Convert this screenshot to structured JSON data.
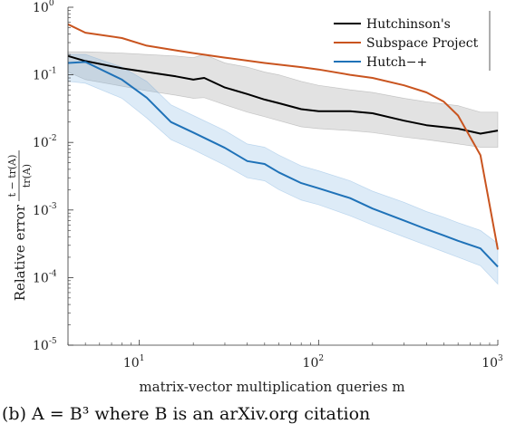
{
  "chart_data": {
    "type": "line",
    "xlabel": "matrix-vector multiplication queries m",
    "ylabel": "Relative error",
    "ylabel_fraction": {
      "numerator": "t − tr(A)",
      "denominator": "tr(A)"
    },
    "xscale": "log",
    "yscale": "log",
    "xlim": [
      4,
      1000
    ],
    "ylim": [
      1e-05,
      1
    ],
    "x_ticks": [
      {
        "base": "10",
        "exp": "1",
        "value": 10
      },
      {
        "base": "10",
        "exp": "2",
        "value": 100
      },
      {
        "base": "10",
        "exp": "3",
        "value": 1000
      }
    ],
    "y_ticks": [
      {
        "base": "10",
        "exp": "0",
        "value": 1
      },
      {
        "base": "10",
        "exp": "-1",
        "value": 0.1
      },
      {
        "base": "10",
        "exp": "-2",
        "value": 0.01
      },
      {
        "base": "10",
        "exp": "-3",
        "value": 0.001
      },
      {
        "base": "10",
        "exp": "-4",
        "value": 0.0001
      },
      {
        "base": "10",
        "exp": "-5",
        "value": 1e-05
      }
    ],
    "legend_position": "top-right",
    "series": [
      {
        "name": "Hutchinson's",
        "color": "#000000",
        "x": [
          4,
          5,
          8,
          11,
          16,
          20,
          23,
          30,
          40,
          50,
          60,
          80,
          100,
          150,
          200,
          300,
          400,
          600,
          800,
          1000
        ],
        "y": [
          0.19,
          0.16,
          0.125,
          0.11,
          0.095,
          0.085,
          0.09,
          0.065,
          0.052,
          0.043,
          0.038,
          0.031,
          0.029,
          0.029,
          0.027,
          0.021,
          0.018,
          0.016,
          0.0135,
          0.015
        ],
        "band_upper": [
          0.22,
          0.22,
          0.21,
          0.2,
          0.19,
          0.18,
          0.2,
          0.15,
          0.13,
          0.11,
          0.1,
          0.08,
          0.07,
          0.06,
          0.055,
          0.045,
          0.04,
          0.035,
          0.028,
          0.028
        ],
        "band_lower": [
          0.11,
          0.085,
          0.068,
          0.058,
          0.05,
          0.045,
          0.046,
          0.036,
          0.028,
          0.024,
          0.021,
          0.017,
          0.016,
          0.015,
          0.014,
          0.012,
          0.011,
          0.0095,
          0.0085,
          0.0085
        ]
      },
      {
        "name": "Subspace Project",
        "color": "#c9541f",
        "x": [
          4,
          5,
          8,
          11,
          16,
          20,
          30,
          50,
          80,
          100,
          150,
          200,
          300,
          400,
          500,
          600,
          800,
          1000
        ],
        "y": [
          0.56,
          0.42,
          0.35,
          0.27,
          0.23,
          0.21,
          0.18,
          0.15,
          0.13,
          0.12,
          0.1,
          0.09,
          0.07,
          0.055,
          0.04,
          0.025,
          0.0065,
          0.00026
        ]
      },
      {
        "name": "Hutch−+",
        "color": "#1f72b8",
        "x": [
          4,
          5,
          8,
          11,
          15,
          20,
          30,
          40,
          50,
          60,
          80,
          100,
          150,
          200,
          300,
          400,
          500,
          600,
          800,
          1000
        ],
        "y": [
          0.15,
          0.155,
          0.085,
          0.046,
          0.02,
          0.014,
          0.0083,
          0.0053,
          0.0048,
          0.0036,
          0.0025,
          0.0021,
          0.0015,
          0.00105,
          0.0007,
          0.00052,
          0.00042,
          0.00035,
          0.00027,
          0.000145
        ],
        "band_upper": [
          0.2,
          0.2,
          0.13,
          0.08,
          0.036,
          0.025,
          0.015,
          0.0095,
          0.0085,
          0.0065,
          0.0045,
          0.0038,
          0.0027,
          0.0019,
          0.0013,
          0.00095,
          0.00078,
          0.00065,
          0.0005,
          0.00032
        ],
        "band_lower": [
          0.08,
          0.075,
          0.045,
          0.023,
          0.011,
          0.0078,
          0.0046,
          0.003,
          0.0027,
          0.002,
          0.0014,
          0.0012,
          0.00082,
          0.0006,
          0.0004,
          0.0003,
          0.00024,
          0.0002,
          0.00015,
          8e-05
        ]
      }
    ]
  },
  "caption": "(b)  A = B³  where  B  is an arXiv.org citation"
}
